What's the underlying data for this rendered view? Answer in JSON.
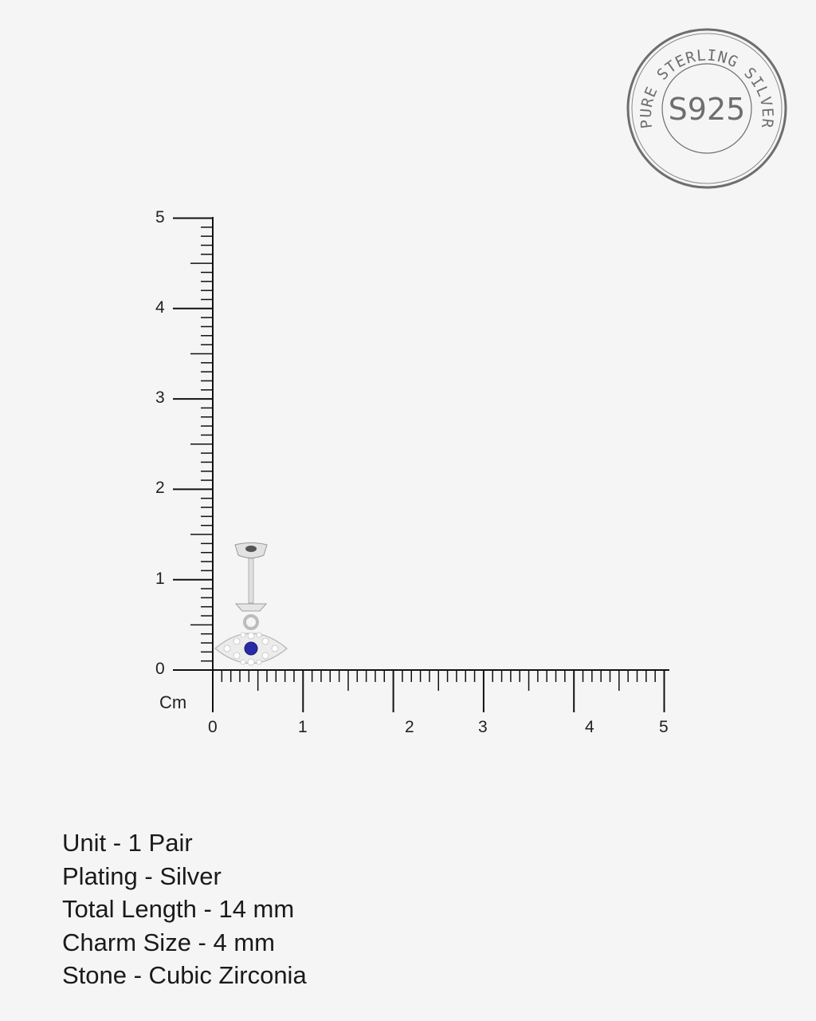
{
  "stamp": {
    "ring_text": "PURE STERLING SILVER",
    "center_text": "S925",
    "color": "#6e6e6e"
  },
  "ruler": {
    "unit_label": "Cm",
    "y_labels": [
      "0",
      "1",
      "2",
      "3",
      "4",
      "5"
    ],
    "x_labels": [
      "0",
      "1",
      "2",
      "3",
      "4",
      "5"
    ],
    "range_cm": [
      0,
      5
    ],
    "color": "#111111"
  },
  "product": {
    "stone_color": "#2a2aa8",
    "metal_color": "#d8d8d8"
  },
  "specs": [
    "Unit - 1 Pair",
    "Plating - Silver",
    "Total Length - 14 mm",
    "Charm Size - 4 mm",
    "Stone - Cubic Zirconia"
  ]
}
